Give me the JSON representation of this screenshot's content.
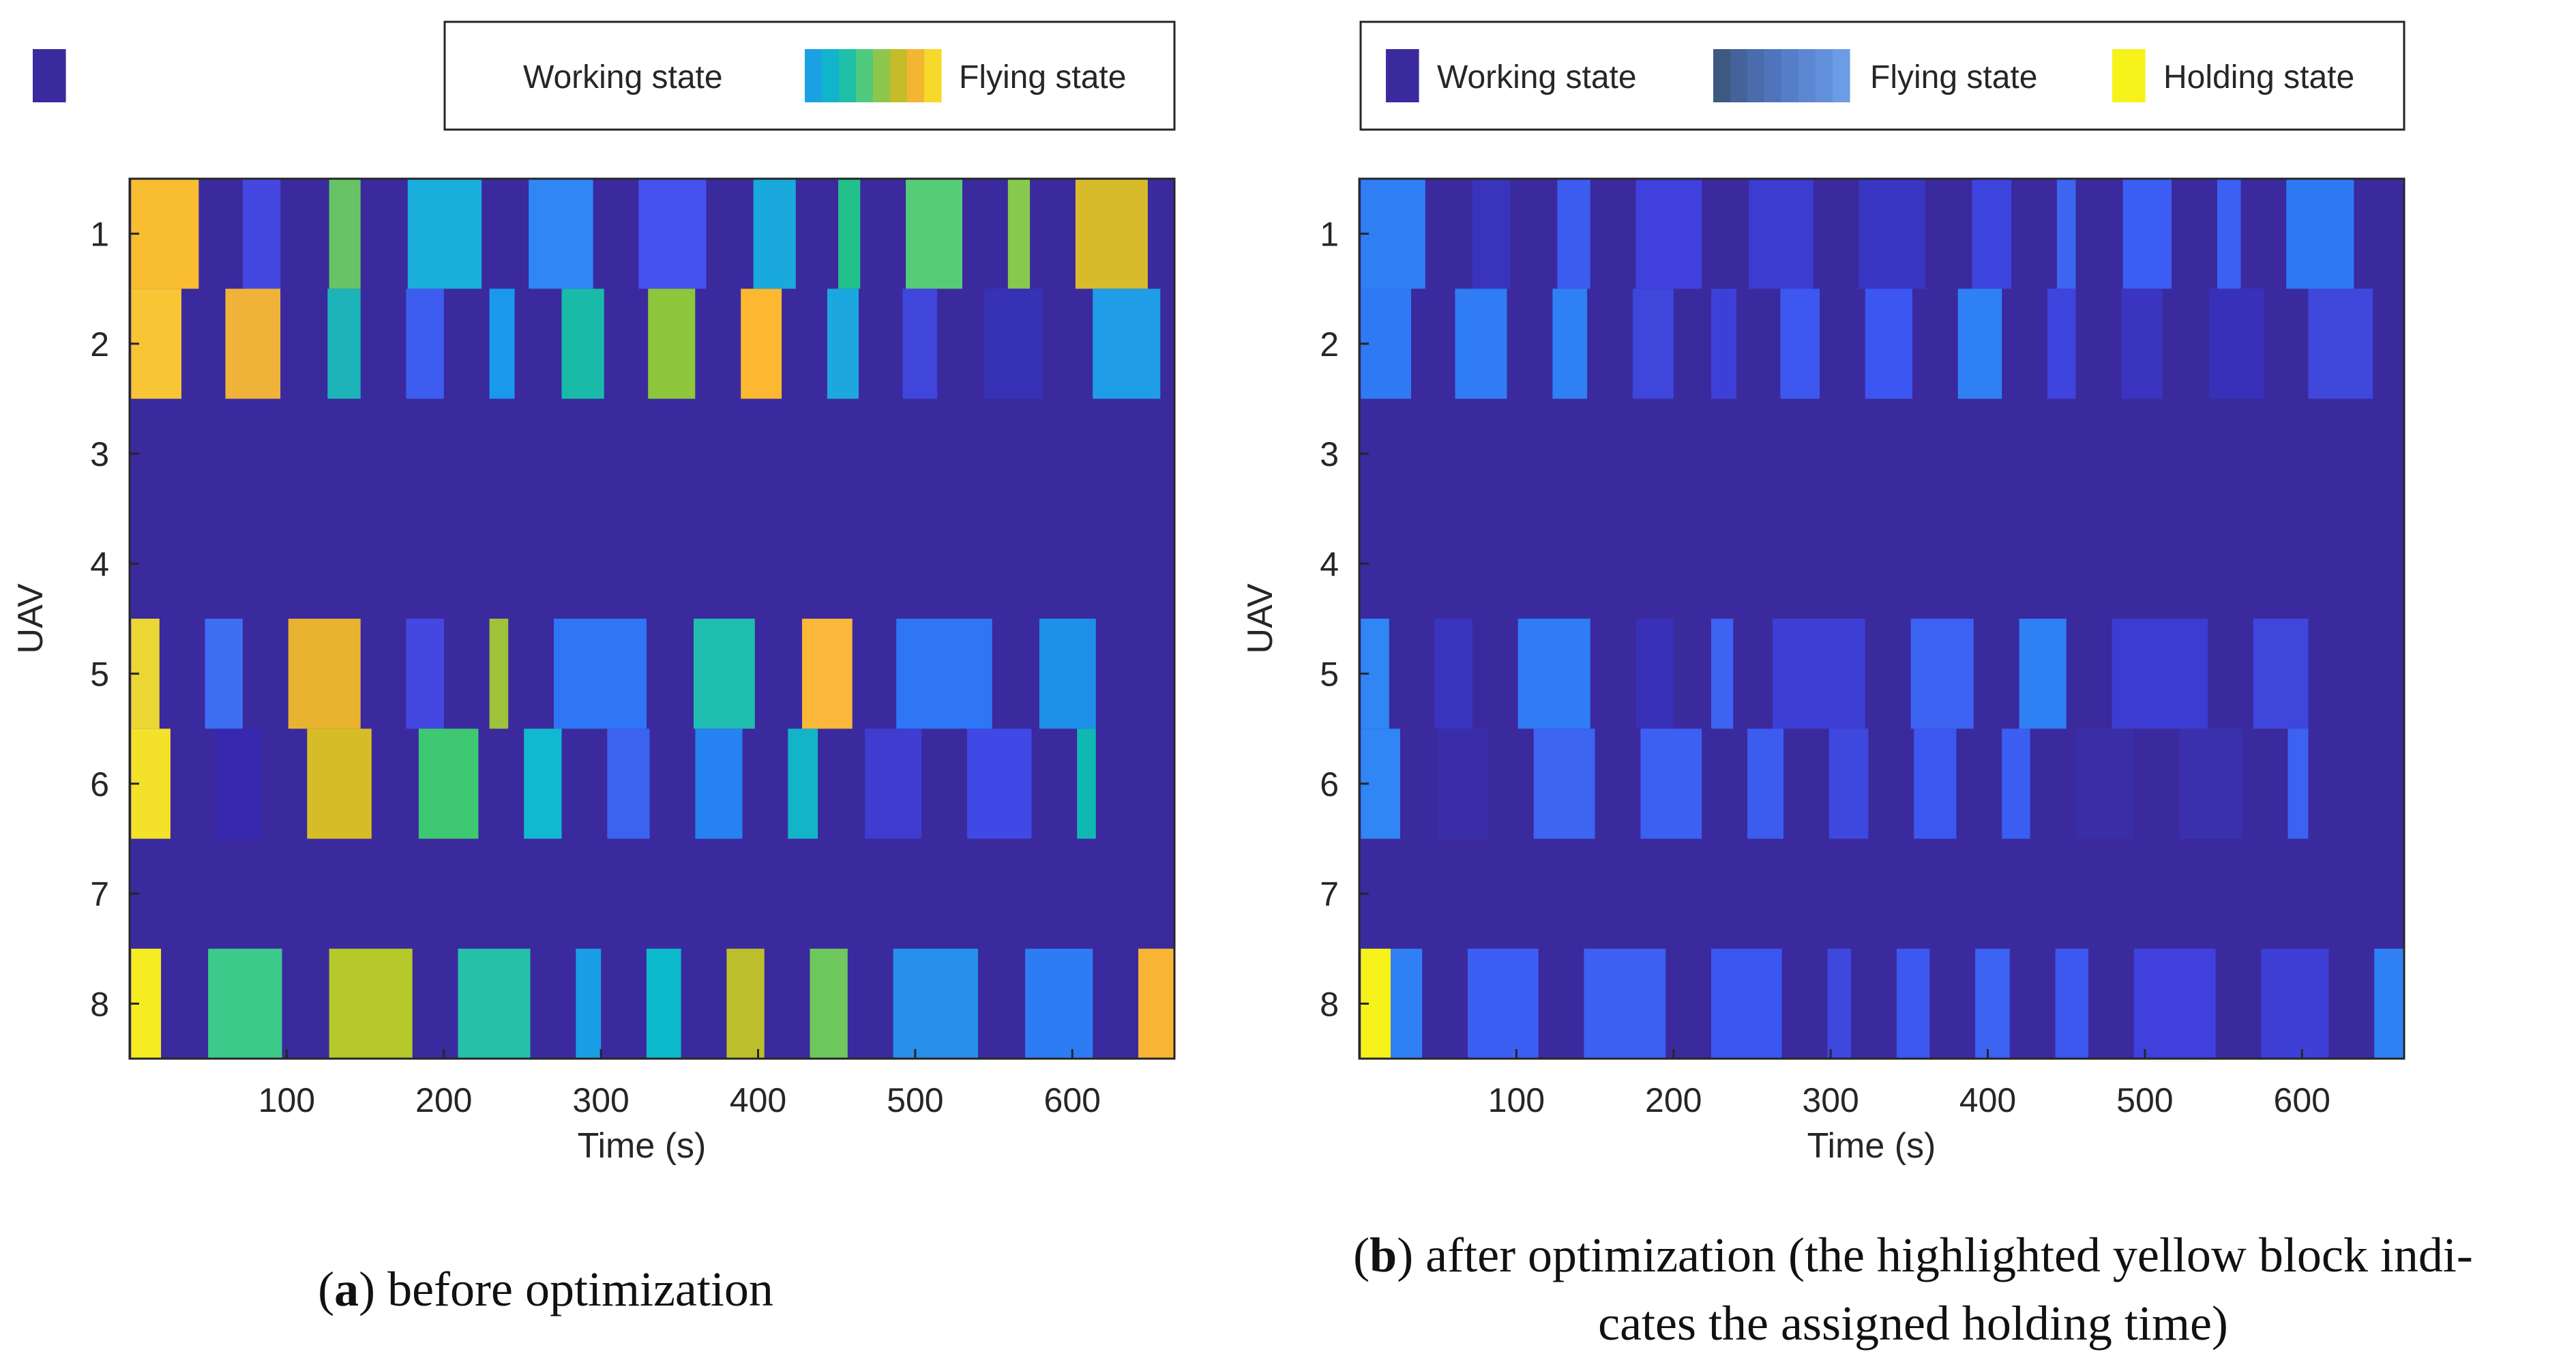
{
  "chart_data": [
    {
      "type": "gantt-heatmap",
      "id": "a",
      "xlabel": "Time (s)",
      "ylabel": "UAV",
      "xlim": [
        0,
        665
      ],
      "xticks": [
        100,
        200,
        300,
        400,
        500,
        600
      ],
      "yticks": [
        1,
        2,
        3,
        4,
        5,
        6,
        7,
        8
      ],
      "background_color": "#3a2a9d",
      "legend": [
        {
          "label": "Working state",
          "kind": "solid",
          "colors": [
            "#3a2a9d"
          ]
        },
        {
          "label": "Flying state",
          "kind": "gradient",
          "colors": [
            "#1ba1e2",
            "#10b5cc",
            "#1fc0a8",
            "#4fca7c",
            "#8cc74c",
            "#c4bc2a",
            "#f2b633",
            "#f7d92b"
          ]
        }
      ],
      "series": [
        {
          "uav": 1,
          "segments": [
            [
              1,
              44,
              "#f8bd30"
            ],
            [
              72,
              96,
              "#4548e0"
            ],
            [
              127,
              147,
              "#66c466"
            ],
            [
              177,
              224,
              "#1aaedc"
            ],
            [
              254,
              295,
              "#2f86f4"
            ],
            [
              324,
              367,
              "#4552ee"
            ],
            [
              397,
              424,
              "#1aa9dd"
            ],
            [
              451,
              465,
              "#22c08a"
            ],
            [
              494,
              530,
              "#55cc78"
            ],
            [
              559,
              573,
              "#86c94c"
            ],
            [
              602,
              648,
              "#d8bb2a"
            ]
          ]
        },
        {
          "uav": 2,
          "segments": [
            [
              1,
              33,
              "#f8c534"
            ],
            [
              61,
              96,
              "#f0b33a"
            ],
            [
              126,
              147,
              "#1cb4b8"
            ],
            [
              176,
              200,
              "#3d5df0"
            ],
            [
              229,
              245,
              "#1a98ec"
            ],
            [
              275,
              302,
              "#1abaa8"
            ],
            [
              330,
              360,
              "#8ec63c"
            ],
            [
              389,
              415,
              "#fbb830"
            ],
            [
              444,
              464,
              "#1ca8df"
            ],
            [
              492,
              514,
              "#4046dc"
            ],
            [
              544,
              581,
              "#3731b5"
            ],
            [
              613,
              656,
              "#1f9de6"
            ]
          ]
        },
        {
          "uav": 5,
          "segments": [
            [
              1,
              19,
              "#ecd634"
            ],
            [
              48,
              72,
              "#3d6ef2"
            ],
            [
              101,
              147,
              "#e8b430"
            ],
            [
              176,
              200,
              "#4548e0"
            ],
            [
              229,
              241,
              "#9ec23a"
            ],
            [
              270,
              329,
              "#2f76f6"
            ],
            [
              359,
              398,
              "#20beb0"
            ],
            [
              428,
              460,
              "#fab73a"
            ],
            [
              488,
              549,
              "#2f76f6"
            ],
            [
              579,
              615,
              "#1e90e8"
            ]
          ]
        },
        {
          "uav": 6,
          "segments": [
            [
              1,
              26,
              "#f4e22a"
            ],
            [
              55,
              84,
              "#3629b0"
            ],
            [
              113,
              154,
              "#d6bc26"
            ],
            [
              184,
              222,
              "#3ec872"
            ],
            [
              251,
              275,
              "#12b8d0"
            ],
            [
              304,
              331,
              "#3c62f0"
            ],
            [
              360,
              390,
              "#2582f0"
            ],
            [
              419,
              438,
              "#14b4c8"
            ],
            [
              468,
              504,
              "#3f3cd0"
            ],
            [
              533,
              574,
              "#4048e6"
            ],
            [
              603,
              615,
              "#10b8b2"
            ]
          ]
        },
        {
          "uav": 8,
          "segments": [
            [
              1,
              20,
              "#f6ec22"
            ],
            [
              50,
              97,
              "#3cca8a"
            ],
            [
              127,
              180,
              "#b4c82a"
            ],
            [
              209,
              255,
              "#26c0a8"
            ],
            [
              284,
              300,
              "#1a9ee6"
            ],
            [
              329,
              351,
              "#0cbace"
            ],
            [
              380,
              404,
              "#bcbe2c"
            ],
            [
              433,
              457,
              "#6ec85e"
            ],
            [
              486,
              540,
              "#2790ea"
            ],
            [
              570,
              613,
              "#2d7cf4"
            ],
            [
              642,
              665,
              "#f8b434"
            ]
          ]
        }
      ]
    },
    {
      "type": "gantt-heatmap",
      "id": "b",
      "xlabel": "Time (s)",
      "ylabel": "UAV",
      "xlim": [
        0,
        665
      ],
      "xticks": [
        100,
        200,
        300,
        400,
        500,
        600
      ],
      "yticks": [
        1,
        2,
        3,
        4,
        5,
        6,
        7,
        8
      ],
      "background_color": "#3a2a9d",
      "legend": [
        {
          "label": "Working state",
          "kind": "solid",
          "colors": [
            "#3a2a9d"
          ]
        },
        {
          "label": "Flying state",
          "kind": "gradient",
          "colors": [
            "#3d5980",
            "#43639a",
            "#4a6cad",
            "#5074bc",
            "#567ec8",
            "#5c87d2",
            "#6390dc",
            "#6c9ce6"
          ]
        },
        {
          "label": "Holding state",
          "kind": "solid",
          "colors": [
            "#f6f21a"
          ]
        }
      ],
      "series": [
        {
          "uav": 1,
          "segments": [
            [
              1,
              42,
              "#2f7ef4"
            ],
            [
              72,
              96,
              "#3a34bc"
            ],
            [
              126,
              147,
              "#3c5cf0"
            ],
            [
              176,
              218,
              "#4040dc"
            ],
            [
              248,
              289,
              "#3d3cd0"
            ],
            [
              318,
              360,
              "#3a36c4"
            ],
            [
              390,
              415,
              "#3e44de"
            ],
            [
              444,
              456,
              "#3c66f0"
            ],
            [
              486,
              517,
              "#3c5ef2"
            ],
            [
              546,
              561,
              "#3c60f2"
            ],
            [
              590,
              633,
              "#2f78f4"
            ]
          ]
        },
        {
          "uav": 2,
          "segments": [
            [
              1,
              33,
              "#2f7af4"
            ],
            [
              61,
              94,
              "#2f7cf4"
            ],
            [
              123,
              145,
              "#2f80f4"
            ],
            [
              174,
              200,
              "#3e46dc"
            ],
            [
              224,
              240,
              "#3d40d8"
            ],
            [
              268,
              293,
              "#3c58f0"
            ],
            [
              322,
              352,
              "#3c56f2"
            ],
            [
              381,
              409,
              "#2f80f4"
            ],
            [
              438,
              456,
              "#3e44de"
            ],
            [
              485,
              511,
              "#3a34c0"
            ],
            [
              541,
              576,
              "#3830b8"
            ],
            [
              604,
              645,
              "#4048dc"
            ]
          ]
        },
        {
          "uav": 5,
          "segments": [
            [
              1,
              19,
              "#2f86f4"
            ],
            [
              48,
              72,
              "#3a34c0"
            ],
            [
              101,
              147,
              "#2f7cf4"
            ],
            [
              176,
              200,
              "#3830b6"
            ],
            [
              224,
              238,
              "#3c64f0"
            ],
            [
              263,
              322,
              "#3d3ed4"
            ],
            [
              351,
              391,
              "#3c62f2"
            ],
            [
              420,
              450,
              "#2f80f4"
            ],
            [
              479,
              540,
              "#3c3cd2"
            ],
            [
              569,
              604,
              "#3e46dc"
            ]
          ]
        },
        {
          "uav": 6,
          "segments": [
            [
              1,
              26,
              "#2f86f4"
            ],
            [
              50,
              82,
              "#3a2ea8"
            ],
            [
              111,
              150,
              "#3c66f2"
            ],
            [
              179,
              218,
              "#3c60f2"
            ],
            [
              247,
              270,
              "#3c5cf0"
            ],
            [
              299,
              324,
              "#3e48de"
            ],
            [
              353,
              380,
              "#3c58f0"
            ],
            [
              409,
              427,
              "#3c5ef2"
            ],
            [
              456,
              493,
              "#3a2ea6"
            ],
            [
              522,
              562,
              "#3a30ae"
            ],
            [
              591,
              604,
              "#3c62f2"
            ]
          ]
        },
        {
          "uav": 8,
          "segments": [
            [
              1,
              20,
              "#f6f21a"
            ],
            [
              20,
              40,
              "#2f80f4"
            ],
            [
              69,
              114,
              "#3d5ef2"
            ],
            [
              143,
              195,
              "#3c60f2"
            ],
            [
              224,
              269,
              "#3c56f2"
            ],
            [
              298,
              313,
              "#3e48de"
            ],
            [
              342,
              363,
              "#3c58f0"
            ],
            [
              392,
              414,
              "#3c62f2"
            ],
            [
              443,
              464,
              "#3c58f0"
            ],
            [
              493,
              545,
              "#4040dc"
            ],
            [
              574,
              617,
              "#3e3fd4"
            ],
            [
              646,
              665,
              "#2f80f4"
            ]
          ]
        }
      ]
    }
  ],
  "captions": {
    "a": {
      "letter": "a",
      "text": ") before optimization"
    },
    "b": {
      "letter": "b",
      "line1": ") after optimization (the highlighted yellow block indi-",
      "line2": "cates the assigned holding time)"
    }
  }
}
